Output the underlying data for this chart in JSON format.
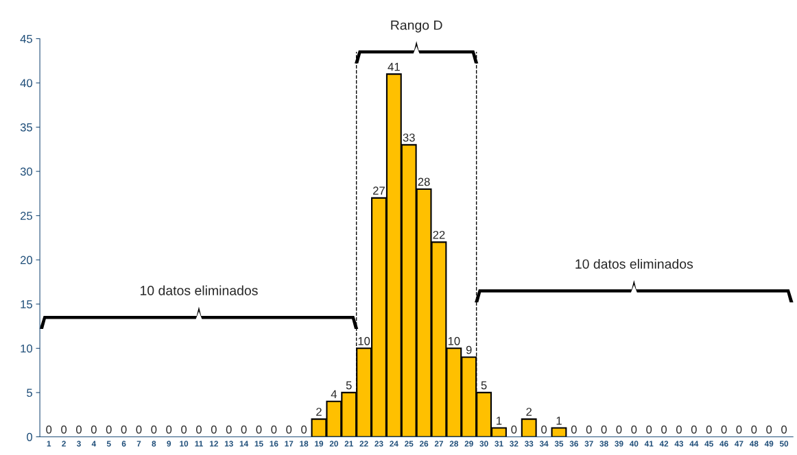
{
  "chart_data": {
    "type": "bar",
    "categories": [
      "1",
      "2",
      "3",
      "4",
      "5",
      "6",
      "7",
      "8",
      "9",
      "10",
      "11",
      "12",
      "13",
      "14",
      "15",
      "16",
      "17",
      "18",
      "19",
      "20",
      "21",
      "22",
      "23",
      "24",
      "25",
      "26",
      "27",
      "28",
      "29",
      "30",
      "31",
      "32",
      "33",
      "34",
      "35",
      "36",
      "37",
      "38",
      "39",
      "40",
      "41",
      "42",
      "43",
      "44",
      "45",
      "46",
      "47",
      "48",
      "49",
      "50"
    ],
    "values": [
      0,
      0,
      0,
      0,
      0,
      0,
      0,
      0,
      0,
      0,
      0,
      0,
      0,
      0,
      0,
      0,
      0,
      0,
      2,
      4,
      5,
      10,
      27,
      41,
      33,
      28,
      22,
      10,
      9,
      5,
      1,
      0,
      2,
      0,
      1,
      0,
      0,
      0,
      0,
      0,
      0,
      0,
      0,
      0,
      0,
      0,
      0,
      0,
      0,
      0
    ],
    "color": "#ffc000",
    "ylim": [
      0,
      45
    ],
    "yticks": [
      0,
      5,
      10,
      15,
      20,
      25,
      30,
      35,
      40,
      45
    ],
    "data_labels": true,
    "annotations": [
      "10 datos eliminados",
      "Rango D",
      "10 datos eliminados"
    ]
  }
}
